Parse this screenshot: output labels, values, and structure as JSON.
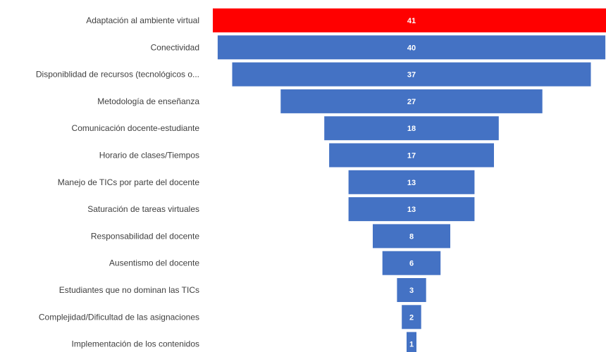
{
  "chart_data": {
    "type": "bar",
    "subtype": "funnel",
    "categories": [
      "Adaptación al ambiente virtual",
      "Conectividad",
      "Disponiblidad de recursos (tecnológicos o...",
      "Metodología de enseñanza",
      "Comunicación docente-estudiante",
      "Horario de clases/Tiempos",
      "Manejo de TICs por parte del docente",
      "Saturación de tareas virtuales",
      "Responsabilidad del docente",
      "Ausentismo del docente",
      "Estudiantes que no dominan las TICs",
      "Complejidad/Dificultad de las asignaciones",
      "Implementación de los contenidos"
    ],
    "values": [
      41,
      40,
      37,
      27,
      18,
      17,
      13,
      13,
      8,
      6,
      3,
      2,
      1
    ],
    "title": "",
    "xlabel": "",
    "ylabel": "",
    "grid": false,
    "legend": "none",
    "colors": {
      "default": "#4472C4",
      "highlight": "#FF0000",
      "highlight_index": 0,
      "value_text": "#FFFFFF",
      "label_text": "#404040"
    }
  }
}
